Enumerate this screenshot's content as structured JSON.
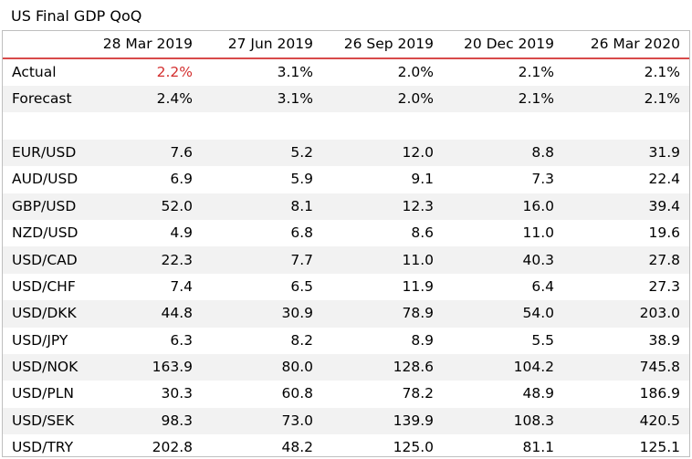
{
  "title": "US Final GDP QoQ",
  "table": {
    "headers": [
      "",
      "28 Mar 2019",
      "27 Jun 2019",
      "26 Sep 2019",
      "20 Dec 2019",
      "26 Mar 2020"
    ],
    "highlight_color": "#d32f2f",
    "header_rule_color": "#d84a4a",
    "rows": [
      [
        "Actual",
        "2.2%",
        "3.1%",
        "2.0%",
        "2.1%",
        "2.1%"
      ],
      [
        "Forecast",
        "2.4%",
        "3.1%",
        "2.0%",
        "2.1%",
        "2.1%"
      ],
      [
        "",
        "",
        "",
        "",
        "",
        ""
      ],
      [
        "EUR/USD",
        "7.6",
        "5.2",
        "12.0",
        "8.8",
        "31.9"
      ],
      [
        "AUD/USD",
        "6.9",
        "5.9",
        "9.1",
        "7.3",
        "22.4"
      ],
      [
        "GBP/USD",
        "52.0",
        "8.1",
        "12.3",
        "16.0",
        "39.4"
      ],
      [
        "NZD/USD",
        "4.9",
        "6.8",
        "8.6",
        "11.0",
        "19.6"
      ],
      [
        "USD/CAD",
        "22.3",
        "7.7",
        "11.0",
        "40.3",
        "27.8"
      ],
      [
        "USD/CHF",
        "7.4",
        "6.5",
        "11.9",
        "6.4",
        "27.3"
      ],
      [
        "USD/DKK",
        "44.8",
        "30.9",
        "78.9",
        "54.0",
        "203.0"
      ],
      [
        "USD/JPY",
        "6.3",
        "8.2",
        "8.9",
        "5.5",
        "38.9"
      ],
      [
        "USD/NOK",
        "163.9",
        "80.0",
        "128.6",
        "104.2",
        "745.8"
      ],
      [
        "USD/PLN",
        "30.3",
        "60.8",
        "78.2",
        "48.9",
        "186.9"
      ],
      [
        "USD/SEK",
        "98.3",
        "73.0",
        "139.9",
        "108.3",
        "420.5"
      ],
      [
        "USD/TRY",
        "202.8",
        "48.2",
        "125.0",
        "81.1",
        "125.1"
      ]
    ]
  }
}
